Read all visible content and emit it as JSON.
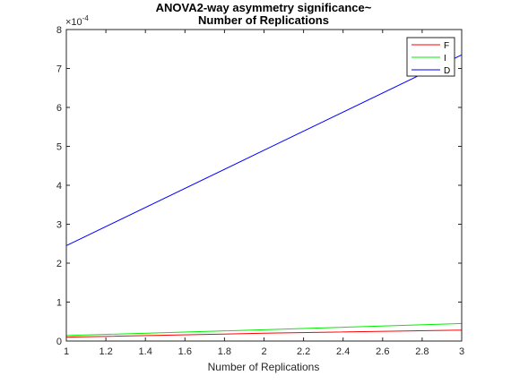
{
  "chart_data": {
    "type": "line",
    "title_line1": "ANOVA2-way asymmetry significance~",
    "title_line2": "Number of Replications",
    "xlabel": "Number of Replications",
    "ylabel": "",
    "y_exponent_base": "×10",
    "y_exponent_power": "-4",
    "xlim": [
      1,
      3
    ],
    "ylim": [
      0,
      8
    ],
    "x_ticks": [
      1,
      1.2,
      1.4,
      1.6,
      1.8,
      2,
      2.2,
      2.4,
      2.6,
      2.8,
      3
    ],
    "x_tick_labels": [
      "1",
      "1.2",
      "1.4",
      "1.6",
      "1.8",
      "2",
      "2.2",
      "2.4",
      "2.6",
      "2.8",
      "3"
    ],
    "y_ticks": [
      0,
      1,
      2,
      3,
      4,
      5,
      6,
      7,
      8
    ],
    "y_tick_labels": [
      "0",
      "1",
      "2",
      "3",
      "4",
      "5",
      "6",
      "7",
      "8"
    ],
    "grid": false,
    "legend_position": "top-right",
    "series": [
      {
        "name": "F",
        "color": "#ff0000",
        "x": [
          1,
          2,
          3
        ],
        "y": [
          0.1,
          0.2,
          0.28
        ]
      },
      {
        "name": "I",
        "color": "#00ee00",
        "x": [
          1,
          2,
          3
        ],
        "y": [
          0.14,
          0.29,
          0.45
        ]
      },
      {
        "name": "D",
        "color": "#0000ff",
        "x": [
          1,
          2,
          3
        ],
        "y": [
          2.45,
          4.9,
          7.35
        ]
      }
    ]
  }
}
